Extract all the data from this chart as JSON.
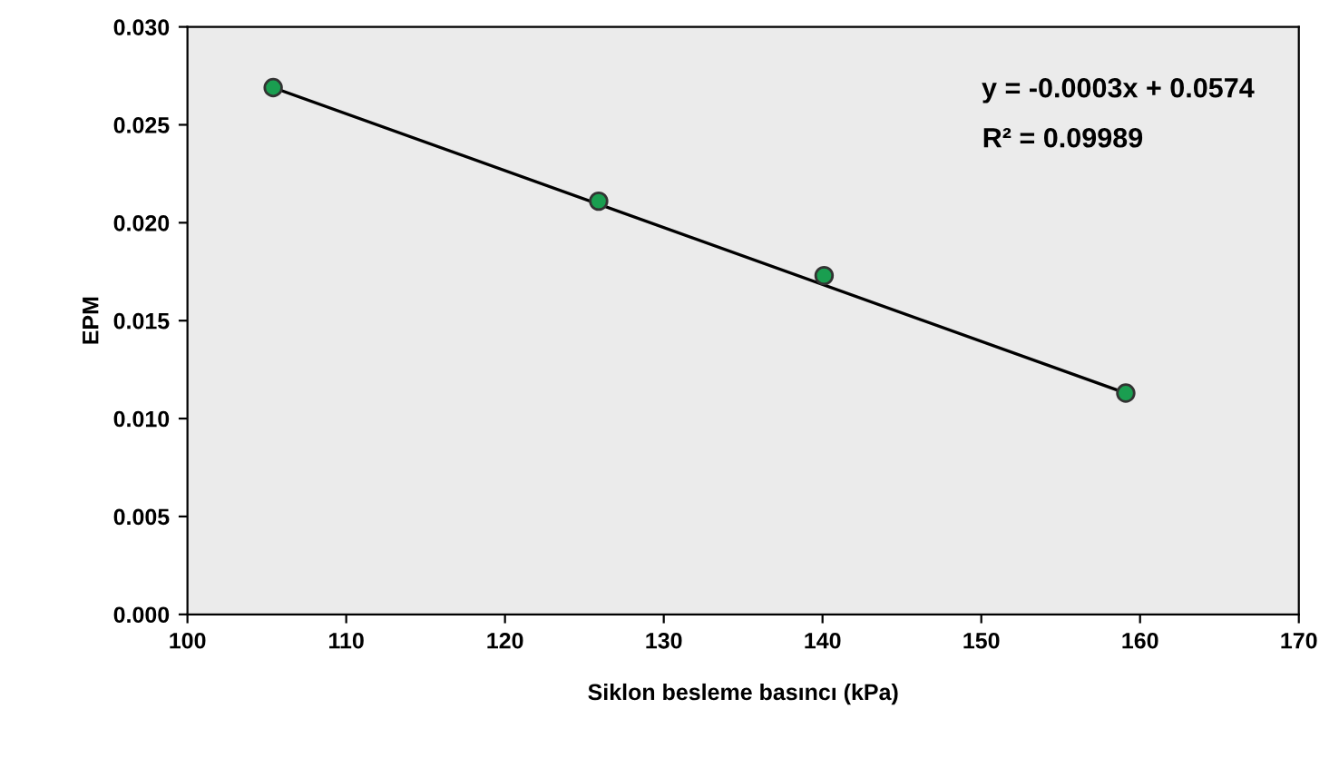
{
  "chart_data": {
    "type": "scatter",
    "xlabel": "Siklon besleme basıncı (kPa)",
    "ylabel": "EPM",
    "series": [
      {
        "color": "#1a9e50",
        "marker": "circle",
        "x": [
          105.4,
          125.9,
          140.1,
          159.1
        ],
        "values": [
          0.0269,
          0.0211,
          0.0173,
          0.0113
        ]
      },
      {
        "type": "line",
        "color": "#000000",
        "x": [
          105.4,
          159.1
        ],
        "values": [
          0.0269,
          0.0113
        ]
      }
    ],
    "annotations": [
      "y = -0.0003x + 0.0574",
      "R² = 0.09989"
    ],
    "xlim": [
      100,
      170
    ],
    "xticks": [
      100,
      110,
      120,
      130,
      140,
      150,
      160,
      170
    ],
    "ylim": [
      0,
      0.03
    ],
    "yticks": [
      {
        "value": 0,
        "label": "0.000"
      },
      {
        "value": 0.005,
        "label": "0.005"
      },
      {
        "value": 0.01,
        "label": "0.010"
      },
      {
        "value": 0.015,
        "label": "0.015"
      },
      {
        "value": 0.02,
        "label": "0.020"
      },
      {
        "value": 0.025,
        "label": "0.025"
      },
      {
        "value": 0.03,
        "label": "0.030"
      }
    ],
    "grid": false
  }
}
